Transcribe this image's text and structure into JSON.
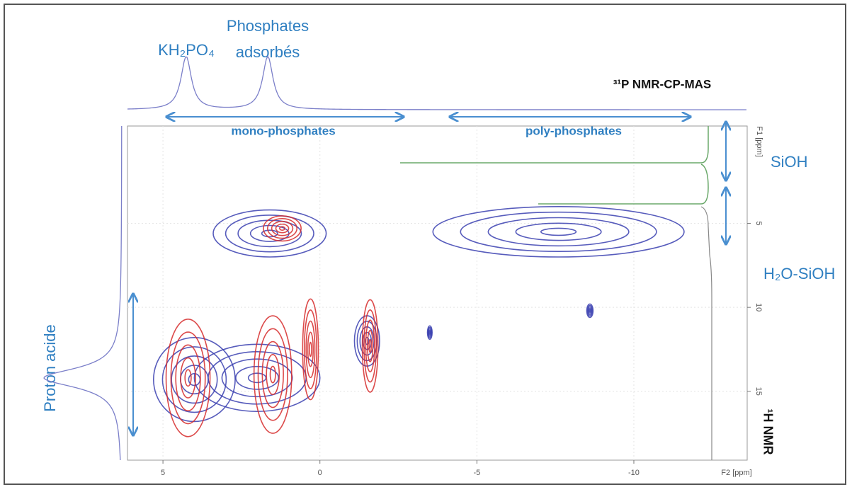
{
  "chart_data": {
    "type": "contour",
    "annotations": {
      "f2_peak_1": "KH₂PO₄",
      "f2_peak_2_line1": "Phosphates",
      "f2_peak_2_line2": "adsorbés",
      "f2_nucleus": "³¹P NMR-CP-MAS",
      "f1_nucleus": "¹H NMR",
      "mono": "mono-phosphates",
      "poly": "poly-phosphates",
      "sioh": "SiOH",
      "h2o_sioh": "H₂O-SiOH",
      "proton": "Proton acide"
    },
    "xlabel": "F2 [ppm]",
    "ylabel": "F1 [ppm]",
    "xlim": [
      6.13,
      -13.61
    ],
    "xticks": [
      5,
      0,
      -5,
      -10
    ],
    "ylim": [
      -0.8,
      19.1
    ],
    "yticks": [
      5,
      10,
      15
    ],
    "grid": true,
    "f2_projection_peaks": [
      4.26,
      1.66
    ],
    "f1_projection_peaks": [
      14.2
    ],
    "peaks": [
      {
        "x": 1.6,
        "y": 5.6,
        "wx": 3.6,
        "wy": 2.8,
        "color": "#3a3fb0"
      },
      {
        "x": -7.6,
        "y": 5.5,
        "wx": 8,
        "wy": 3,
        "color": "#3a3fb0"
      },
      {
        "x": 1.2,
        "y": 5.3,
        "wx": 1.2,
        "wy": 1.5,
        "color": "#d62a2a"
      },
      {
        "x": 4.0,
        "y": 14.3,
        "wx": 2.6,
        "wy": 5,
        "color": "#3a3fb0"
      },
      {
        "x": 2.0,
        "y": 14.2,
        "wx": 4,
        "wy": 4,
        "color": "#3a3fb0"
      },
      {
        "x": 4.2,
        "y": 14.2,
        "wx": 1.4,
        "wy": 7,
        "color": "#d62a2a"
      },
      {
        "x": 1.5,
        "y": 14.0,
        "wx": 1.2,
        "wy": 7,
        "color": "#d62a2a"
      },
      {
        "x": 0.3,
        "y": 12.5,
        "wx": 0.5,
        "wy": 6,
        "color": "#d62a2a"
      },
      {
        "x": -1.5,
        "y": 12.0,
        "wx": 0.8,
        "wy": 3,
        "color": "#3a3fb0"
      },
      {
        "x": -1.6,
        "y": 12.3,
        "wx": 0.5,
        "wy": 5.5,
        "color": "#d62a2a"
      },
      {
        "x": -8.6,
        "y": 10.2,
        "wx": 0.2,
        "wy": 0.8,
        "color": "#3a3fb0"
      },
      {
        "x": -3.5,
        "y": 11.5,
        "wx": 0.15,
        "wy": 0.8,
        "color": "#3a3fb0"
      }
    ]
  }
}
